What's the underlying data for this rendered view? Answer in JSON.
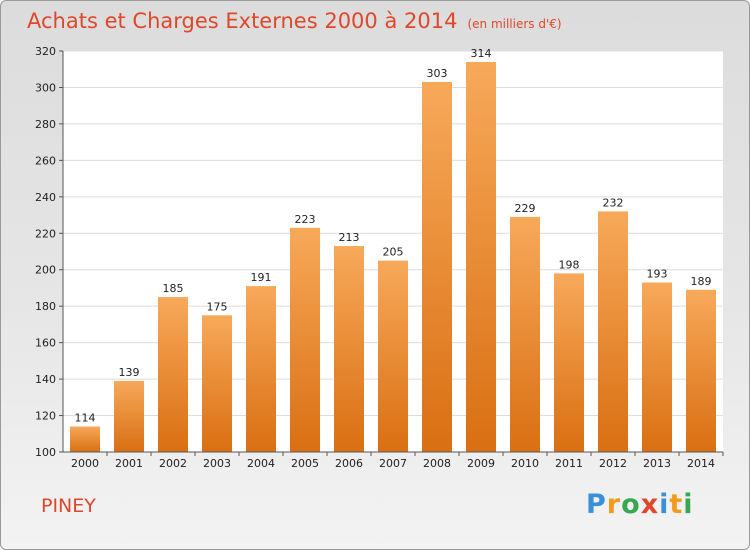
{
  "header": {
    "title": "Achats et Charges Externes 2000 à 2014",
    "subtitle": "(en milliers d'€)"
  },
  "footer": {
    "town": "PINEY",
    "logo_letters": [
      "P",
      "r",
      "o",
      "x",
      "i",
      "t",
      "i"
    ],
    "logo_colors": [
      "#3a8fd9",
      "#f29a1b",
      "#36a852",
      "#e0472a",
      "#3a8fd9",
      "#f29a1b",
      "#36a852"
    ]
  },
  "chart_data": {
    "type": "bar",
    "title": "Achats et Charges Externes 2000 à 2014",
    "subtitle": "(en milliers d'€)",
    "categories": [
      "2000",
      "2001",
      "2002",
      "2003",
      "2004",
      "2005",
      "2006",
      "2007",
      "2008",
      "2009",
      "2010",
      "2011",
      "2012",
      "2013",
      "2014"
    ],
    "values": [
      114,
      139,
      185,
      175,
      191,
      223,
      213,
      205,
      303,
      314,
      229,
      198,
      232,
      193,
      189
    ],
    "ylim": [
      100,
      320
    ],
    "yticks": [
      100,
      120,
      140,
      160,
      180,
      200,
      220,
      240,
      260,
      280,
      300,
      320
    ],
    "grid": true,
    "bar_color_top": "#f7a95a",
    "bar_color_bottom": "#d96f12",
    "plot_background": "#ffffff"
  }
}
